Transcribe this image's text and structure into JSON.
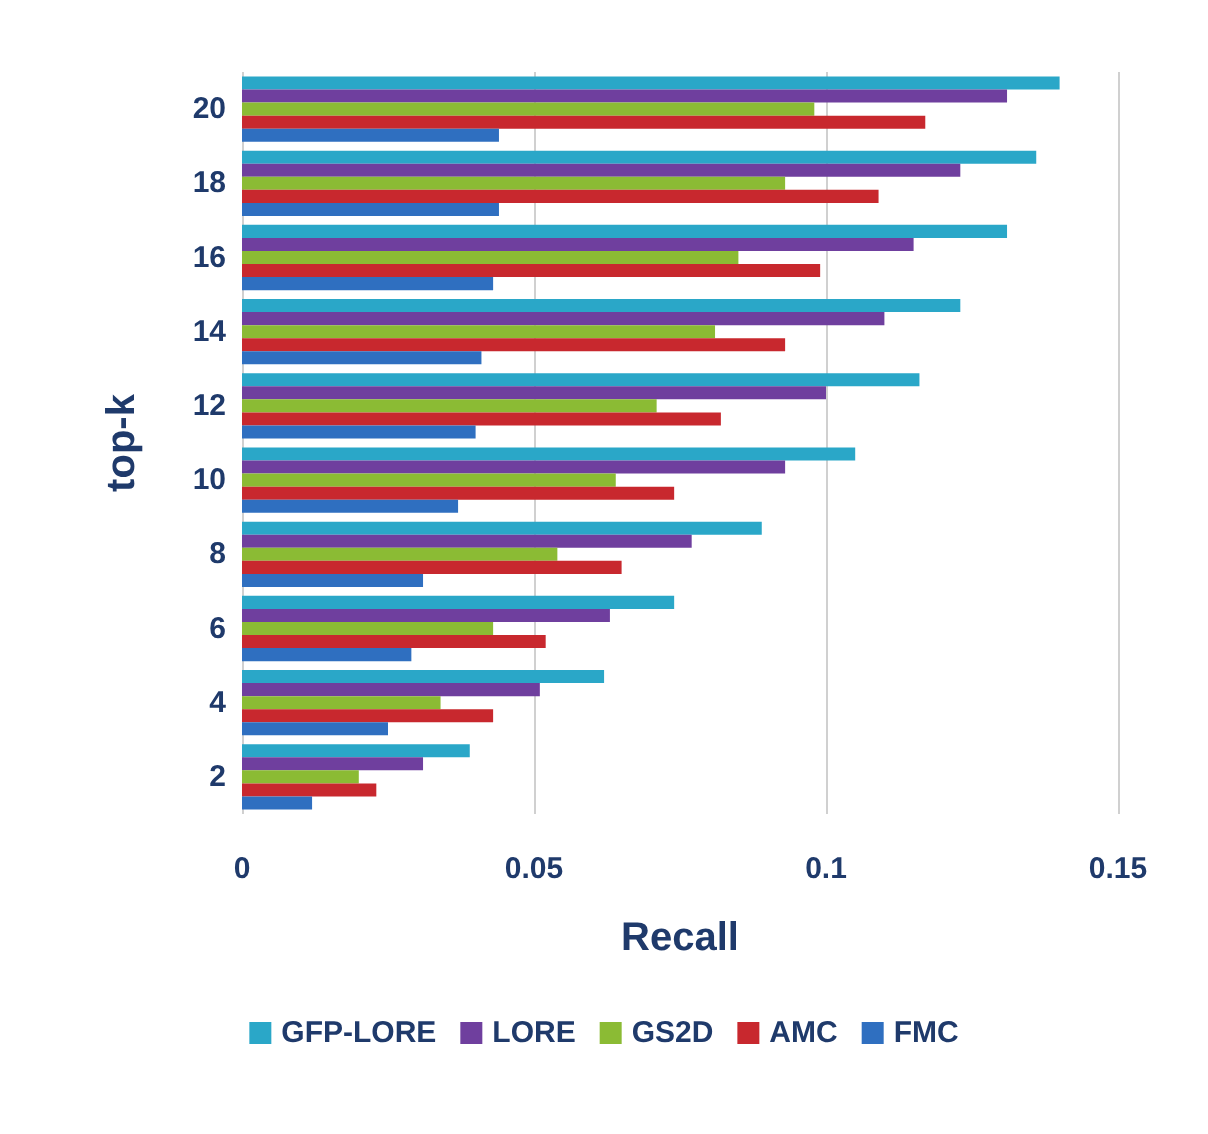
{
  "chart_data": {
    "type": "bar",
    "orientation": "horizontal",
    "xlabel": "Recall",
    "ylabel": "top-k",
    "categories": [
      "20",
      "18",
      "16",
      "14",
      "12",
      "10",
      "8",
      "6",
      "4",
      "2"
    ],
    "series": [
      {
        "name": "GFP-LORE",
        "color": "#2aa7c8",
        "values": [
          0.14,
          0.136,
          0.131,
          0.123,
          0.116,
          0.105,
          0.089,
          0.074,
          0.062,
          0.039
        ]
      },
      {
        "name": "LORE",
        "color": "#6f3f9e",
        "values": [
          0.131,
          0.123,
          0.115,
          0.11,
          0.1,
          0.093,
          0.077,
          0.063,
          0.051,
          0.031
        ]
      },
      {
        "name": "GS2D",
        "color": "#8bbb34",
        "values": [
          0.098,
          0.093,
          0.085,
          0.081,
          0.071,
          0.064,
          0.054,
          0.043,
          0.034,
          0.02
        ]
      },
      {
        "name": "AMC",
        "color": "#c8282e",
        "values": [
          0.117,
          0.109,
          0.099,
          0.093,
          0.082,
          0.074,
          0.065,
          0.052,
          0.043,
          0.023
        ]
      },
      {
        "name": "FMC",
        "color": "#2f6fc0",
        "values": [
          0.044,
          0.044,
          0.043,
          0.041,
          0.04,
          0.037,
          0.031,
          0.029,
          0.025,
          0.012
        ]
      }
    ],
    "xlim": [
      0,
      0.15
    ],
    "xticks": [
      0,
      0.05,
      0.1,
      0.15
    ],
    "grid": "x",
    "legend": "bottom"
  }
}
